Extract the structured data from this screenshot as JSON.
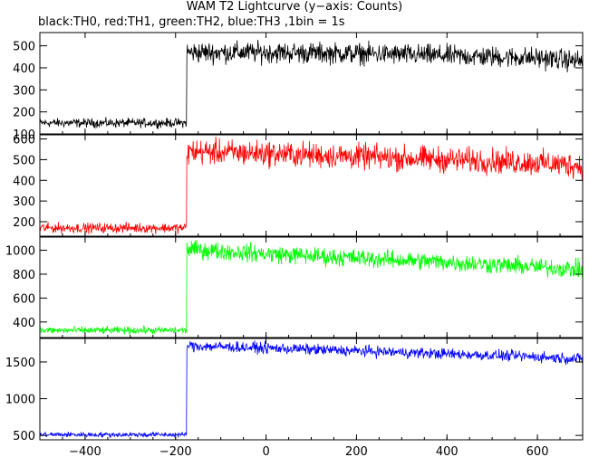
{
  "title": "WAM T2 Lightcurve (y−axis: Counts)",
  "subtitle": "black:TH0, red:TH1, green:TH2, blue:TH3 ,1bin = 1s",
  "chart_data": {
    "type": "line",
    "x_range": [
      -500,
      700
    ],
    "x_ticks": [
      -400,
      -200,
      0,
      200,
      400,
      600
    ],
    "x_tick_labels": [
      "−400",
      "−200",
      "0",
      "200",
      "400",
      "600"
    ],
    "bin_seconds": 1,
    "trigger_x": -175,
    "series": [
      {
        "name": "TH0",
        "color": "#000000",
        "ylim": [
          100,
          560
        ],
        "y_ticks": [
          100,
          200,
          300,
          400,
          500
        ],
        "pre_level": 150,
        "pre_noise": 30,
        "post_profile": [
          [
            -175,
            470
          ],
          [
            0,
            470
          ],
          [
            200,
            465
          ],
          [
            400,
            455
          ],
          [
            600,
            445
          ],
          [
            700,
            430
          ]
        ],
        "post_noise": 70
      },
      {
        "name": "TH1",
        "color": "#ff0000",
        "ylim": [
          130,
          620
        ],
        "y_ticks": [
          200,
          300,
          400,
          500,
          600
        ],
        "pre_level": 170,
        "pre_noise": 35,
        "post_profile": [
          [
            -175,
            540
          ],
          [
            0,
            530
          ],
          [
            200,
            515
          ],
          [
            400,
            500
          ],
          [
            600,
            485
          ],
          [
            700,
            470
          ]
        ],
        "post_noise": 90
      },
      {
        "name": "TH2",
        "color": "#00ff00",
        "ylim": [
          270,
          1110
        ],
        "y_ticks": [
          400,
          600,
          800,
          1000
        ],
        "pre_level": 330,
        "pre_noise": 45,
        "post_profile": [
          [
            -175,
            1010
          ],
          [
            0,
            970
          ],
          [
            200,
            935
          ],
          [
            400,
            900
          ],
          [
            600,
            860
          ],
          [
            700,
            840
          ]
        ],
        "post_noise": 110
      },
      {
        "name": "TH3",
        "color": "#0000ff",
        "ylim": [
          440,
          1820
        ],
        "y_ticks": [
          500,
          1000,
          1500
        ],
        "pre_level": 510,
        "pre_noise": 50,
        "post_profile": [
          [
            -175,
            1720
          ],
          [
            0,
            1690
          ],
          [
            200,
            1650
          ],
          [
            400,
            1610
          ],
          [
            600,
            1570
          ],
          [
            700,
            1540
          ]
        ],
        "post_noise": 110
      }
    ]
  }
}
